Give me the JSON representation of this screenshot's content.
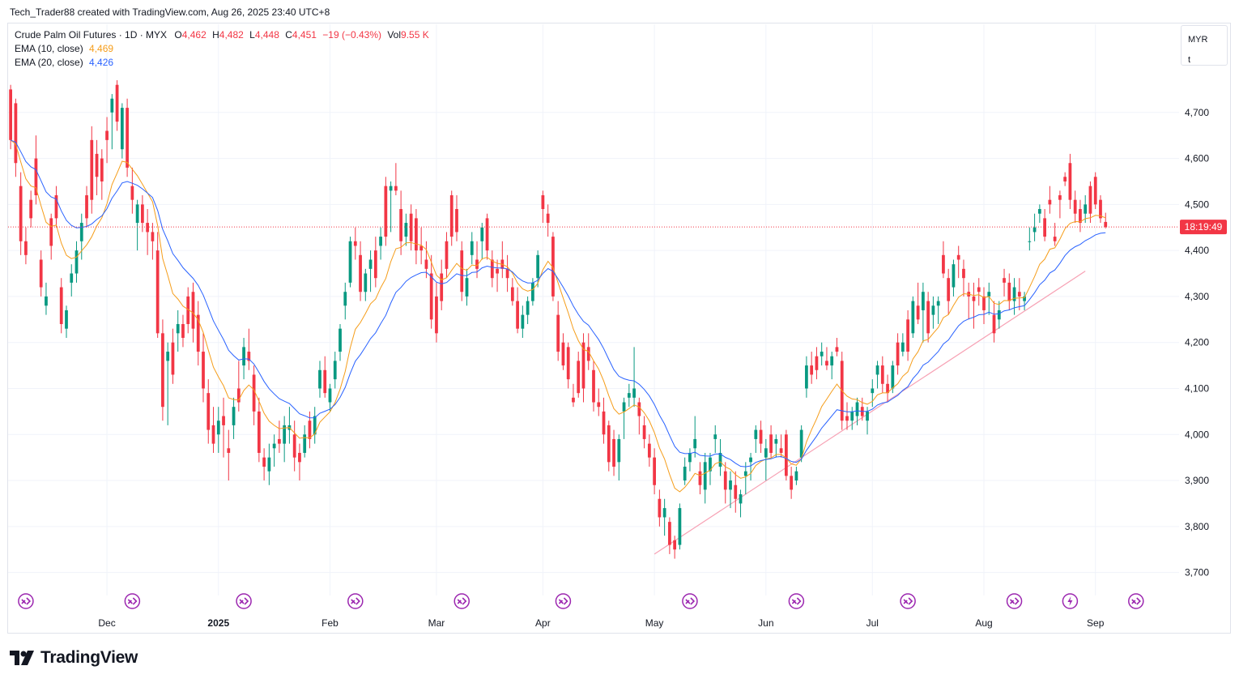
{
  "header": {
    "attribution": "Tech_Trader88 created with TradingView.com, Aug 26, 2025 23:40 UTC+8"
  },
  "legend": {
    "symbol": "Crude Palm Oil Futures · 1D · MYX",
    "o_label": "O",
    "o_value": "4,462",
    "h_label": "H",
    "h_value": "4,482",
    "l_label": "L",
    "l_value": "4,448",
    "c_label": "C",
    "c_value": "4,451",
    "change": "−19 (−0.43%)",
    "vol_label": "Vol",
    "vol_value": "9.55 K",
    "ema10_label": "EMA (10, close)",
    "ema10_value": "4,469",
    "ema20_label": "EMA (20, close)",
    "ema20_value": "4,426"
  },
  "currency": {
    "code": "MYR",
    "unit": "t"
  },
  "countdown": "18:19:49",
  "brand": {
    "name": "TradingView"
  },
  "colors": {
    "up": "#089981",
    "down": "#f23645",
    "ema10": "#f59d1a",
    "ema20": "#2962ff",
    "trendline": "#f7a1b4",
    "price_line": "#f23645",
    "event": "#9c27b0"
  },
  "chart_data": {
    "type": "candlestick",
    "instrument": "Crude Palm Oil Futures",
    "interval": "1D",
    "exchange": "MYX",
    "currency": "MYR",
    "y_ticks": [
      3700,
      3800,
      3900,
      4000,
      4100,
      4200,
      4300,
      4400,
      4500,
      4600,
      4700
    ],
    "y_tick_labels": [
      "3,700",
      "3,800",
      "3,900",
      "4,000",
      "4,100",
      "4,200",
      "4,300",
      "4,400",
      "4,500",
      "4,600",
      "4,700"
    ],
    "ylim": [
      3650,
      4800
    ],
    "last_price": 4451,
    "x_labels": [
      "Dec",
      "2025",
      "Feb",
      "Mar",
      "Apr",
      "May",
      "Jun",
      "Jul",
      "Aug",
      "Sep"
    ],
    "x_label_index": [
      19,
      41,
      63,
      84,
      105,
      127,
      149,
      170,
      192,
      214
    ],
    "num_bars": 231,
    "last_bar_index": 209,
    "candles": [
      [
        4750,
        4760,
        4620,
        4640
      ],
      [
        4720,
        4730,
        4560,
        4590
      ],
      [
        4540,
        4570,
        4390,
        4420
      ],
      [
        4420,
        4450,
        4370,
        4390
      ],
      [
        4510,
        4530,
        4450,
        4470
      ],
      [
        4600,
        4650,
        4500,
        4520
      ],
      [
        4380,
        4400,
        4300,
        4320
      ],
      [
        4280,
        4330,
        4260,
        4300
      ],
      [
        4470,
        4480,
        4380,
        4410
      ],
      [
        4520,
        4540,
        4450,
        4470
      ],
      [
        4320,
        4340,
        4220,
        4240
      ],
      [
        4230,
        4280,
        4210,
        4270
      ],
      [
        4330,
        4370,
        4300,
        4350
      ],
      [
        4350,
        4420,
        4330,
        4400
      ],
      [
        4420,
        4480,
        4380,
        4460
      ],
      [
        4520,
        4540,
        4450,
        4470
      ],
      [
        4640,
        4670,
        4480,
        4510
      ],
      [
        4610,
        4640,
        4520,
        4560
      ],
      [
        4600,
        4620,
        4510,
        4550
      ],
      [
        4660,
        4690,
        4590,
        4640
      ],
      [
        4700,
        4740,
        4620,
        4730
      ],
      [
        4760,
        4770,
        4660,
        4680
      ],
      [
        4620,
        4720,
        4600,
        4710
      ],
      [
        4710,
        4730,
        4560,
        4580
      ],
      [
        4540,
        4580,
        4480,
        4510
      ],
      [
        4460,
        4510,
        4400,
        4500
      ],
      [
        4500,
        4520,
        4440,
        4460
      ],
      [
        4460,
        4490,
        4390,
        4440
      ],
      [
        4440,
        4460,
        4380,
        4420
      ],
      [
        4400,
        4440,
        4210,
        4220
      ],
      [
        4220,
        4250,
        4030,
        4060
      ],
      [
        4160,
        4200,
        4020,
        4180
      ],
      [
        4200,
        4230,
        4110,
        4130
      ],
      [
        4220,
        4270,
        4180,
        4240
      ],
      [
        4240,
        4260,
        4190,
        4210
      ],
      [
        4300,
        4320,
        4220,
        4240
      ],
      [
        4310,
        4330,
        4200,
        4230
      ],
      [
        4260,
        4290,
        4150,
        4180
      ],
      [
        4180,
        4220,
        4070,
        4100
      ],
      [
        4090,
        4120,
        3980,
        4010
      ],
      [
        4020,
        4060,
        3960,
        3980
      ],
      [
        4000,
        4060,
        3960,
        4030
      ],
      [
        4040,
        4080,
        3950,
        4020
      ],
      [
        3970,
        4010,
        3900,
        3960
      ],
      [
        4020,
        4080,
        3990,
        4060
      ],
      [
        4100,
        4160,
        4050,
        4070
      ],
      [
        4150,
        4210,
        4120,
        4190
      ],
      [
        4180,
        4230,
        4140,
        4160
      ],
      [
        4130,
        4150,
        4020,
        4050
      ],
      [
        4050,
        4080,
        3940,
        3960
      ],
      [
        3950,
        3970,
        3900,
        3930
      ],
      [
        3920,
        3980,
        3890,
        3950
      ],
      [
        3970,
        4000,
        3930,
        3980
      ],
      [
        3990,
        4030,
        3960,
        3980
      ],
      [
        3980,
        4040,
        3940,
        4020
      ],
      [
        4010,
        4060,
        3980,
        4020
      ],
      [
        4000,
        4030,
        3920,
        3950
      ],
      [
        3960,
        3980,
        3900,
        3940
      ],
      [
        3960,
        4020,
        3950,
        4000
      ],
      [
        4030,
        4050,
        3970,
        3990
      ],
      [
        4000,
        4060,
        3980,
        4040
      ],
      [
        4100,
        4160,
        4080,
        4140
      ],
      [
        4140,
        4170,
        4080,
        4090
      ],
      [
        4070,
        4110,
        4050,
        4100
      ],
      [
        4120,
        4180,
        4100,
        4160
      ],
      [
        4180,
        4240,
        4160,
        4230
      ],
      [
        4280,
        4330,
        4250,
        4310
      ],
      [
        4330,
        4430,
        4320,
        4420
      ],
      [
        4420,
        4450,
        4380,
        4410
      ],
      [
        4390,
        4420,
        4290,
        4310
      ],
      [
        4310,
        4360,
        4290,
        4350
      ],
      [
        4360,
        4400,
        4310,
        4380
      ],
      [
        4400,
        4430,
        4320,
        4340
      ],
      [
        4410,
        4450,
        4380,
        4430
      ],
      [
        4540,
        4560,
        4410,
        4430
      ],
      [
        4530,
        4550,
        4440,
        4540
      ],
      [
        4540,
        4590,
        4520,
        4530
      ],
      [
        4490,
        4530,
        4390,
        4420
      ],
      [
        4430,
        4480,
        4410,
        4460
      ],
      [
        4480,
        4500,
        4400,
        4420
      ],
      [
        4470,
        4490,
        4370,
        4400
      ],
      [
        4410,
        4450,
        4370,
        4400
      ],
      [
        4380,
        4420,
        4340,
        4360
      ],
      [
        4350,
        4390,
        4230,
        4250
      ],
      [
        4300,
        4330,
        4200,
        4220
      ],
      [
        4350,
        4380,
        4270,
        4290
      ],
      [
        4420,
        4440,
        4340,
        4360
      ],
      [
        4520,
        4530,
        4410,
        4430
      ],
      [
        4490,
        4520,
        4420,
        4440
      ],
      [
        4400,
        4420,
        4290,
        4310
      ],
      [
        4300,
        4360,
        4280,
        4340
      ],
      [
        4390,
        4440,
        4370,
        4420
      ],
      [
        4380,
        4420,
        4340,
        4360
      ],
      [
        4420,
        4460,
        4380,
        4450
      ],
      [
        4470,
        4480,
        4380,
        4400
      ],
      [
        4380,
        4400,
        4320,
        4340
      ],
      [
        4360,
        4380,
        4310,
        4350
      ],
      [
        4380,
        4420,
        4340,
        4360
      ],
      [
        4360,
        4390,
        4310,
        4340
      ],
      [
        4320,
        4340,
        4280,
        4290
      ],
      [
        4290,
        4320,
        4220,
        4230
      ],
      [
        4230,
        4280,
        4210,
        4260
      ],
      [
        4260,
        4300,
        4240,
        4290
      ],
      [
        4290,
        4340,
        4280,
        4330
      ],
      [
        4340,
        4400,
        4320,
        4390
      ],
      [
        4520,
        4530,
        4460,
        4490
      ],
      [
        4480,
        4500,
        4430,
        4460
      ],
      [
        4430,
        4440,
        4290,
        4300
      ],
      [
        4260,
        4290,
        4160,
        4180
      ],
      [
        4200,
        4220,
        4140,
        4150
      ],
      [
        4190,
        4200,
        4100,
        4120
      ],
      [
        4080,
        4110,
        4060,
        4070
      ],
      [
        4160,
        4180,
        4080,
        4090
      ],
      [
        4200,
        4220,
        4070,
        4100
      ],
      [
        4190,
        4220,
        4140,
        4160
      ],
      [
        4140,
        4160,
        4050,
        4070
      ],
      [
        4070,
        4100,
        4040,
        4060
      ],
      [
        4050,
        4080,
        3980,
        4000
      ],
      [
        4020,
        4030,
        3920,
        3940
      ],
      [
        3990,
        4010,
        3910,
        3930
      ],
      [
        3940,
        4000,
        3900,
        3990
      ],
      [
        4050,
        4080,
        3990,
        4070
      ],
      [
        4080,
        4110,
        4060,
        4090
      ],
      [
        4080,
        4190,
        4060,
        4100
      ],
      [
        4070,
        4080,
        4000,
        4040
      ],
      [
        4020,
        4040,
        3970,
        3990
      ],
      [
        3980,
        4000,
        3930,
        3950
      ],
      [
        3950,
        3970,
        3870,
        3890
      ],
      [
        3860,
        3880,
        3800,
        3820
      ],
      [
        3820,
        3860,
        3780,
        3840
      ],
      [
        3810,
        3820,
        3740,
        3760
      ],
      [
        3770,
        3780,
        3730,
        3750
      ],
      [
        3760,
        3850,
        3750,
        3840
      ],
      [
        3900,
        3950,
        3890,
        3930
      ],
      [
        3940,
        3970,
        3920,
        3960
      ],
      [
        3970,
        4040,
        3950,
        3990
      ],
      [
        3920,
        3940,
        3870,
        3890
      ],
      [
        3880,
        3960,
        3850,
        3940
      ],
      [
        3920,
        3960,
        3890,
        3950
      ],
      [
        3990,
        4020,
        3960,
        4000
      ],
      [
        3930,
        3990,
        3910,
        3960
      ],
      [
        3920,
        3940,
        3850,
        3880
      ],
      [
        3880,
        3920,
        3840,
        3900
      ],
      [
        3890,
        3920,
        3830,
        3860
      ],
      [
        3850,
        3880,
        3820,
        3870
      ],
      [
        3910,
        3940,
        3870,
        3920
      ],
      [
        3940,
        3960,
        3900,
        3950
      ],
      [
        3990,
        4020,
        3960,
        4010
      ],
      [
        4010,
        4030,
        3960,
        3980
      ],
      [
        3950,
        3990,
        3900,
        3970
      ],
      [
        4000,
        4020,
        3950,
        3960
      ],
      [
        3980,
        4000,
        3950,
        3990
      ],
      [
        3970,
        4000,
        3950,
        3960
      ],
      [
        4000,
        4010,
        3900,
        3910
      ],
      [
        3910,
        3930,
        3860,
        3880
      ],
      [
        3900,
        3930,
        3890,
        3920
      ],
      [
        3950,
        4020,
        3940,
        4010
      ],
      [
        4100,
        4170,
        4080,
        4150
      ],
      [
        4150,
        4180,
        4110,
        4130
      ],
      [
        4170,
        4190,
        4120,
        4140
      ],
      [
        4170,
        4200,
        4150,
        4180
      ],
      [
        4160,
        4190,
        4140,
        4150
      ],
      [
        4150,
        4180,
        4120,
        4170
      ],
      [
        4190,
        4210,
        4170,
        4180
      ],
      [
        4160,
        4180,
        4010,
        4030
      ],
      [
        4040,
        4070,
        4010,
        4030
      ],
      [
        4030,
        4060,
        4010,
        4050
      ],
      [
        4040,
        4080,
        4020,
        4070
      ],
      [
        4060,
        4080,
        4030,
        4040
      ],
      [
        4030,
        4060,
        4000,
        4050
      ],
      [
        4090,
        4120,
        4060,
        4100
      ],
      [
        4130,
        4160,
        4100,
        4150
      ],
      [
        4150,
        4170,
        4090,
        4110
      ],
      [
        4110,
        4130,
        4070,
        4090
      ],
      [
        4100,
        4160,
        4090,
        4150
      ],
      [
        4200,
        4220,
        4130,
        4150
      ],
      [
        4180,
        4220,
        4170,
        4200
      ],
      [
        4250,
        4270,
        4160,
        4180
      ],
      [
        4220,
        4300,
        4210,
        4290
      ],
      [
        4280,
        4330,
        4240,
        4250
      ],
      [
        4270,
        4330,
        4200,
        4310
      ],
      [
        4290,
        4310,
        4200,
        4220
      ],
      [
        4260,
        4300,
        4230,
        4280
      ],
      [
        4280,
        4300,
        4240,
        4290
      ],
      [
        4390,
        4420,
        4340,
        4350
      ],
      [
        4340,
        4360,
        4260,
        4290
      ],
      [
        4320,
        4380,
        4300,
        4370
      ],
      [
        4390,
        4410,
        4340,
        4380
      ],
      [
        4360,
        4380,
        4300,
        4340
      ],
      [
        4310,
        4330,
        4250,
        4300
      ],
      [
        4300,
        4330,
        4230,
        4290
      ],
      [
        4320,
        4340,
        4280,
        4310
      ],
      [
        4300,
        4320,
        4240,
        4270
      ],
      [
        4300,
        4330,
        4260,
        4310
      ],
      [
        4260,
        4290,
        4200,
        4220
      ],
      [
        4250,
        4290,
        4230,
        4270
      ],
      [
        4340,
        4360,
        4300,
        4330
      ],
      [
        4330,
        4350,
        4270,
        4290
      ],
      [
        4290,
        4340,
        4260,
        4320
      ],
      [
        4310,
        4340,
        4270,
        4300
      ],
      [
        4290,
        4310,
        4270,
        4300
      ],
      [
        4420,
        4450,
        4400,
        4420
      ],
      [
        4440,
        4480,
        4420,
        4450
      ],
      [
        4480,
        4500,
        4460,
        4490
      ],
      [
        4470,
        4490,
        4420,
        4430
      ],
      [
        4510,
        4540,
        4480,
        4500
      ],
      [
        4430,
        4460,
        4410,
        4420
      ],
      [
        4520,
        4530,
        4470,
        4510
      ],
      [
        4560,
        4570,
        4540,
        4550
      ],
      [
        4590,
        4610,
        4490,
        4510
      ],
      [
        4510,
        4530,
        4460,
        4480
      ],
      [
        4490,
        4510,
        4440,
        4460
      ],
      [
        4480,
        4520,
        4460,
        4500
      ],
      [
        4540,
        4550,
        4460,
        4480
      ],
      [
        4560,
        4570,
        4490,
        4500
      ],
      [
        4510,
        4520,
        4460,
        4470
      ],
      [
        4462,
        4482,
        4448,
        4451
      ]
    ],
    "trendline": {
      "from": {
        "index": 127,
        "price": 3740
      },
      "to": {
        "index": 212,
        "price": 4355
      }
    },
    "event_markers_at_index": [
      3,
      24,
      46,
      68,
      89,
      109,
      134,
      155,
      177,
      198,
      209,
      222
    ]
  }
}
